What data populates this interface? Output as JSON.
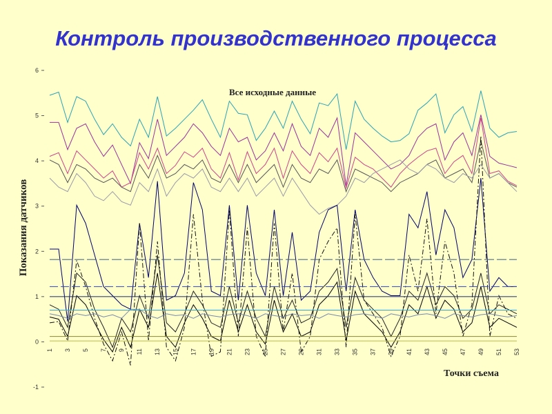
{
  "slide": {
    "title": "Контроль производственного процесса",
    "background": "#ffffcc",
    "title_color": "#3333cc"
  },
  "chart_data": {
    "type": "line",
    "title": "Все исходные данные",
    "xlabel": "Точки съема",
    "ylabel": "Показания датчиков",
    "ylim": [
      -1,
      6
    ],
    "yticks": [
      -1,
      0,
      1,
      2,
      3,
      4,
      5,
      6
    ],
    "xlim": [
      1,
      53
    ],
    "xticks": [
      1,
      3,
      5,
      7,
      9,
      11,
      13,
      15,
      17,
      19,
      21,
      23,
      25,
      27,
      29,
      31,
      33,
      35,
      37,
      39,
      41,
      43,
      45,
      47,
      49,
      51,
      53
    ],
    "x": [
      1,
      2,
      3,
      4,
      5,
      6,
      7,
      8,
      9,
      10,
      11,
      12,
      13,
      14,
      15,
      16,
      17,
      18,
      19,
      20,
      21,
      22,
      23,
      24,
      25,
      26,
      27,
      28,
      29,
      30,
      31,
      32,
      33,
      34,
      35,
      36,
      37,
      38,
      39,
      40,
      41,
      42,
      43,
      44,
      45,
      46,
      47,
      48,
      49,
      50,
      51,
      52,
      53
    ],
    "grid": false,
    "legend": "none",
    "series": [
      {
        "color": "#2aa3b3",
        "dash": "",
        "values": [
          5.45,
          5.52,
          4.85,
          5.42,
          5.32,
          4.92,
          4.58,
          4.82,
          4.52,
          4.33,
          4.92,
          4.52,
          5.42,
          4.55,
          4.72,
          4.92,
          5.12,
          5.35,
          4.92,
          4.52,
          5.32,
          5.05,
          5.02,
          4.45,
          4.72,
          5.1,
          4.72,
          5.32,
          4.92,
          4.6,
          5.28,
          5.22,
          5.48,
          4.25,
          5.32,
          4.92,
          4.72,
          4.55,
          4.42,
          4.45,
          4.6,
          5.12,
          5.28,
          5.48,
          4.62,
          5.02,
          5.2,
          4.65,
          5.55,
          4.72,
          4.52,
          4.62,
          4.65
        ]
      },
      {
        "color": "#993399",
        "dash": "",
        "values": [
          4.85,
          4.85,
          4.25,
          4.72,
          4.82,
          4.42,
          4.1,
          4.35,
          3.92,
          3.5,
          4.4,
          4.05,
          4.92,
          4.12,
          4.32,
          4.52,
          4.82,
          4.62,
          4.32,
          4.12,
          4.72,
          4.42,
          4.52,
          4.02,
          4.22,
          4.62,
          4.22,
          4.82,
          4.32,
          4.12,
          4.72,
          4.52,
          4.95,
          3.45,
          4.62,
          4.42,
          4.22,
          4.02,
          3.82,
          3.92,
          4.12,
          4.52,
          4.72,
          4.82,
          4.02,
          4.42,
          4.62,
          4.12,
          5.02,
          4.1,
          3.95,
          3.9,
          3.85
        ]
      },
      {
        "color": "#cc4488",
        "dash": "",
        "values": [
          4.1,
          4.18,
          3.72,
          4.22,
          4.02,
          3.82,
          3.62,
          3.78,
          3.42,
          3.52,
          4.18,
          3.82,
          4.28,
          3.72,
          3.9,
          4.2,
          4.08,
          4.28,
          3.82,
          3.62,
          4.18,
          3.58,
          4.2,
          3.72,
          3.92,
          4.28,
          3.62,
          4.22,
          3.92,
          3.72,
          4.18,
          3.98,
          4.28,
          3.4,
          4.08,
          3.92,
          3.82,
          3.62,
          3.42,
          3.72,
          3.92,
          4.08,
          4.22,
          4.28,
          3.72,
          3.98,
          4.12,
          3.72,
          4.95,
          3.72,
          3.78,
          3.55,
          3.45
        ]
      },
      {
        "color": "#555555",
        "dash": "",
        "values": [
          4.02,
          3.92,
          3.52,
          3.92,
          3.82,
          3.62,
          3.52,
          3.62,
          3.42,
          3.32,
          3.92,
          3.62,
          4.12,
          3.62,
          3.72,
          3.92,
          3.82,
          4.02,
          3.62,
          3.52,
          3.92,
          3.52,
          3.92,
          3.52,
          3.72,
          3.92,
          3.42,
          3.92,
          3.62,
          3.52,
          3.82,
          3.72,
          4.02,
          3.32,
          3.82,
          3.72,
          3.62,
          3.52,
          3.32,
          3.52,
          3.62,
          3.72,
          3.92,
          4.02,
          3.62,
          3.72,
          3.82,
          3.52,
          4.45,
          3.62,
          3.72,
          3.52,
          3.42
        ]
      },
      {
        "color": "#9a9aa8",
        "dash": "",
        "values": [
          3.62,
          3.42,
          3.32,
          3.72,
          3.52,
          3.22,
          3.12,
          3.32,
          3.1,
          3.02,
          3.52,
          3.32,
          3.82,
          3.22,
          3.52,
          3.72,
          3.62,
          3.82,
          3.42,
          3.32,
          3.62,
          3.32,
          3.62,
          3.22,
          3.42,
          3.62,
          3.22,
          3.62,
          3.32,
          3.02,
          2.82,
          2.95,
          3.02,
          3.22,
          3.62,
          3.52,
          3.72,
          3.82,
          3.92,
          4.02,
          3.82,
          3.72,
          3.92,
          3.82,
          3.62,
          3.52,
          3.72,
          3.62,
          3.92,
          3.62,
          3.72,
          3.52,
          3.32
        ]
      },
      {
        "color": "#000066",
        "dash": "",
        "values": [
          2.05,
          2.05,
          0.45,
          3.02,
          2.62,
          1.92,
          1.22,
          1.02,
          0.82,
          0.72,
          2.62,
          1.42,
          3.55,
          0.92,
          1.02,
          1.52,
          3.52,
          2.92,
          1.12,
          1.02,
          3.02,
          0.92,
          3.02,
          1.52,
          1.02,
          2.92,
          1.02,
          2.42,
          0.92,
          1.12,
          2.42,
          2.92,
          3.02,
          1.12,
          2.92,
          1.82,
          1.42,
          1.12,
          1.02,
          1.02,
          2.82,
          2.52,
          3.32,
          1.92,
          2.92,
          2.52,
          1.42,
          1.82,
          3.62,
          1.12,
          1.42,
          1.22,
          1.22
        ]
      },
      {
        "color": "#222222",
        "dash": "",
        "values": [
          0.82,
          0.72,
          0.32,
          1.52,
          1.32,
          0.72,
          0.32,
          -0.12,
          0.52,
          0.22,
          1.02,
          0.52,
          1.92,
          0.42,
          0.22,
          0.62,
          1.12,
          0.82,
          0.42,
          0.32,
          1.22,
          0.42,
          1.12,
          0.52,
          0.12,
          1.22,
          0.52,
          0.92,
          0.42,
          0.52,
          1.12,
          1.32,
          1.62,
          0.32,
          1.42,
          0.92,
          0.72,
          0.52,
          0.12,
          0.52,
          1.12,
          0.92,
          1.52,
          0.82,
          1.22,
          1.02,
          0.52,
          0.72,
          1.52,
          0.62,
          0.82,
          0.72,
          0.62
        ]
      },
      {
        "color": "#000000",
        "dash": "",
        "values": [
          0.55,
          0.5,
          0.12,
          1.02,
          0.82,
          0.42,
          0.05,
          -0.22,
          0.32,
          -0.12,
          0.72,
          0.32,
          1.52,
          0.12,
          -0.12,
          0.42,
          0.82,
          0.52,
          0.12,
          0.02,
          0.92,
          0.22,
          0.82,
          0.22,
          -0.05,
          0.92,
          0.22,
          0.62,
          0.12,
          0.22,
          0.82,
          1.02,
          1.32,
          0.02,
          1.12,
          0.62,
          0.42,
          0.22,
          -0.12,
          0.22,
          0.82,
          0.62,
          1.22,
          0.52,
          0.92,
          0.72,
          0.22,
          0.42,
          1.22,
          0.32,
          0.52,
          0.42,
          0.32
        ]
      },
      {
        "color": "#111111",
        "dash": "7,3,2,3",
        "values": [
          0.42,
          0.45,
          0.02,
          1.8,
          1.22,
          0.52,
          -0.05,
          -0.42,
          0.22,
          -0.52,
          2.62,
          0.02,
          2.22,
          -0.12,
          -0.42,
          0.32,
          2.82,
          0.92,
          -0.32,
          -0.22,
          2.92,
          0.12,
          2.52,
          0.12,
          -0.32,
          2.62,
          0.22,
          1.52,
          -0.22,
          0.12,
          1.82,
          2.22,
          2.52,
          -0.12,
          2.82,
          0.92,
          0.62,
          0.32,
          -0.32,
          0.12,
          1.92,
          1.12,
          2.72,
          0.62,
          2.22,
          1.52,
          0.12,
          0.82,
          4.55,
          0.12,
          1.02,
          0.62,
          0.52
        ]
      },
      {
        "color": "#7788aa",
        "dash": "",
        "values": [
          0.62,
          0.58,
          0.52,
          0.62,
          0.58,
          0.62,
          0.55,
          0.6,
          0.52,
          0.72,
          0.72,
          0.58,
          0.52,
          0.62,
          0.58,
          0.6,
          0.52,
          0.62,
          0.58,
          0.55,
          0.6,
          0.62,
          0.58,
          0.52,
          0.62,
          0.58,
          0.55,
          0.62,
          0.58,
          0.6,
          0.52,
          0.62,
          0.58,
          0.55,
          0.6,
          0.62,
          0.58,
          0.52,
          0.62,
          0.58,
          0.55,
          0.6,
          0.62,
          0.58,
          0.52,
          0.62,
          0.58,
          0.55,
          0.6,
          0.62,
          0.58,
          0.55,
          0.58
        ]
      },
      {
        "color": "#3344aa",
        "dash": "12,4",
        "values": [
          1.22,
          1.22,
          1.22,
          1.22,
          1.22,
          1.22,
          1.22,
          1.22,
          1.22,
          1.22,
          1.22,
          1.22,
          1.22,
          1.22,
          1.22,
          1.22,
          1.22,
          1.22,
          1.22,
          1.22,
          1.22,
          1.22,
          1.22,
          1.22,
          1.22,
          1.22,
          1.22,
          1.22,
          1.22,
          1.22,
          1.22,
          1.22,
          1.22,
          1.22,
          1.22,
          1.22,
          1.22,
          1.22,
          1.22,
          1.22,
          1.22,
          1.22,
          1.22,
          1.22,
          1.22,
          1.22,
          1.22,
          1.22,
          1.22,
          1.22,
          1.22,
          1.22,
          1.22
        ]
      },
      {
        "color": "#3b5b80",
        "dash": "14,4",
        "values": [
          1.82,
          1.82,
          1.82,
          1.82,
          1.82,
          1.82,
          1.82,
          1.82,
          1.82,
          1.82,
          1.82,
          1.82,
          1.82,
          1.82,
          1.82,
          1.82,
          1.82,
          1.82,
          1.82,
          1.82,
          1.82,
          1.82,
          1.82,
          1.82,
          1.82,
          1.82,
          1.82,
          1.82,
          1.82,
          1.82,
          1.82,
          1.82,
          1.82,
          1.82,
          1.82,
          1.82,
          1.82,
          1.82,
          1.82,
          1.82,
          1.82,
          1.82,
          1.82,
          1.82,
          1.82,
          1.82,
          1.82,
          1.82,
          1.82,
          1.82,
          1.82,
          1.82,
          1.82
        ]
      },
      {
        "color": "#1a2a66",
        "dash": "",
        "values": [
          1.0,
          1.0,
          1.0,
          1.0,
          1.0,
          1.0,
          1.0,
          1.0,
          1.0,
          1.0,
          1.0,
          1.0,
          1.0,
          1.0,
          1.0,
          1.0,
          1.0,
          1.0,
          1.0,
          1.0,
          1.0,
          1.0,
          1.0,
          1.0,
          1.0,
          1.0,
          1.0,
          1.0,
          1.0,
          1.0,
          1.0,
          1.0,
          1.0,
          1.0,
          1.0,
          1.0,
          1.0,
          1.0,
          1.0,
          1.0,
          1.0,
          1.0,
          1.0,
          1.0,
          1.0,
          1.0,
          1.0,
          1.0,
          1.0,
          1.0,
          1.0,
          1.0,
          1.0
        ]
      },
      {
        "color": "#33aacc",
        "dash": "",
        "values": [
          0.7,
          0.7,
          0.7,
          0.7,
          0.7,
          0.7,
          0.7,
          0.7,
          0.7,
          0.7,
          0.7,
          0.7,
          0.7,
          0.7,
          0.7,
          0.7,
          0.7,
          0.7,
          0.7,
          0.7,
          0.7,
          0.7,
          0.7,
          0.7,
          0.7,
          0.7,
          0.7,
          0.7,
          0.7,
          0.7,
          0.7,
          0.7,
          0.7,
          0.7,
          0.7,
          0.7,
          0.7,
          0.7,
          0.7,
          0.7,
          0.7,
          0.7,
          0.7,
          0.7,
          0.7,
          0.7,
          0.7,
          0.7,
          0.7,
          0.7,
          0.7,
          0.7,
          0.7
        ]
      },
      {
        "color": "#888833",
        "dash": "",
        "values": [
          0.12,
          0.12,
          0.12,
          0.12,
          0.12,
          0.12,
          0.12,
          0.12,
          0.12,
          0.12,
          0.12,
          0.12,
          0.12,
          0.12,
          0.12,
          0.12,
          0.12,
          0.12,
          0.12,
          0.12,
          0.12,
          0.12,
          0.12,
          0.12,
          0.12,
          0.12,
          0.12,
          0.12,
          0.12,
          0.12,
          0.12,
          0.12,
          0.12,
          0.12,
          0.12,
          0.12,
          0.12,
          0.12,
          0.12,
          0.12,
          0.12,
          0.12,
          0.12,
          0.12,
          0.12,
          0.12,
          0.12,
          0.12,
          0.12,
          0.12,
          0.12,
          0.12,
          0.12
        ]
      },
      {
        "color": "#bbbb44",
        "dash": "",
        "values": [
          0.02,
          0.02,
          0.02,
          0.02,
          0.02,
          0.02,
          0.02,
          0.02,
          0.02,
          0.02,
          0.02,
          0.02,
          0.02,
          0.02,
          0.02,
          0.02,
          0.02,
          0.02,
          0.02,
          0.02,
          0.02,
          0.02,
          0.02,
          0.02,
          0.02,
          0.02,
          0.02,
          0.02,
          0.02,
          0.02,
          0.02,
          0.02,
          0.02,
          0.02,
          0.02,
          0.02,
          0.02,
          0.02,
          0.02,
          0.02,
          0.02,
          0.02,
          0.02,
          0.02,
          0.02,
          0.02,
          0.02,
          0.02,
          0.02,
          0.02,
          0.02,
          0.02,
          0.02
        ]
      }
    ]
  }
}
